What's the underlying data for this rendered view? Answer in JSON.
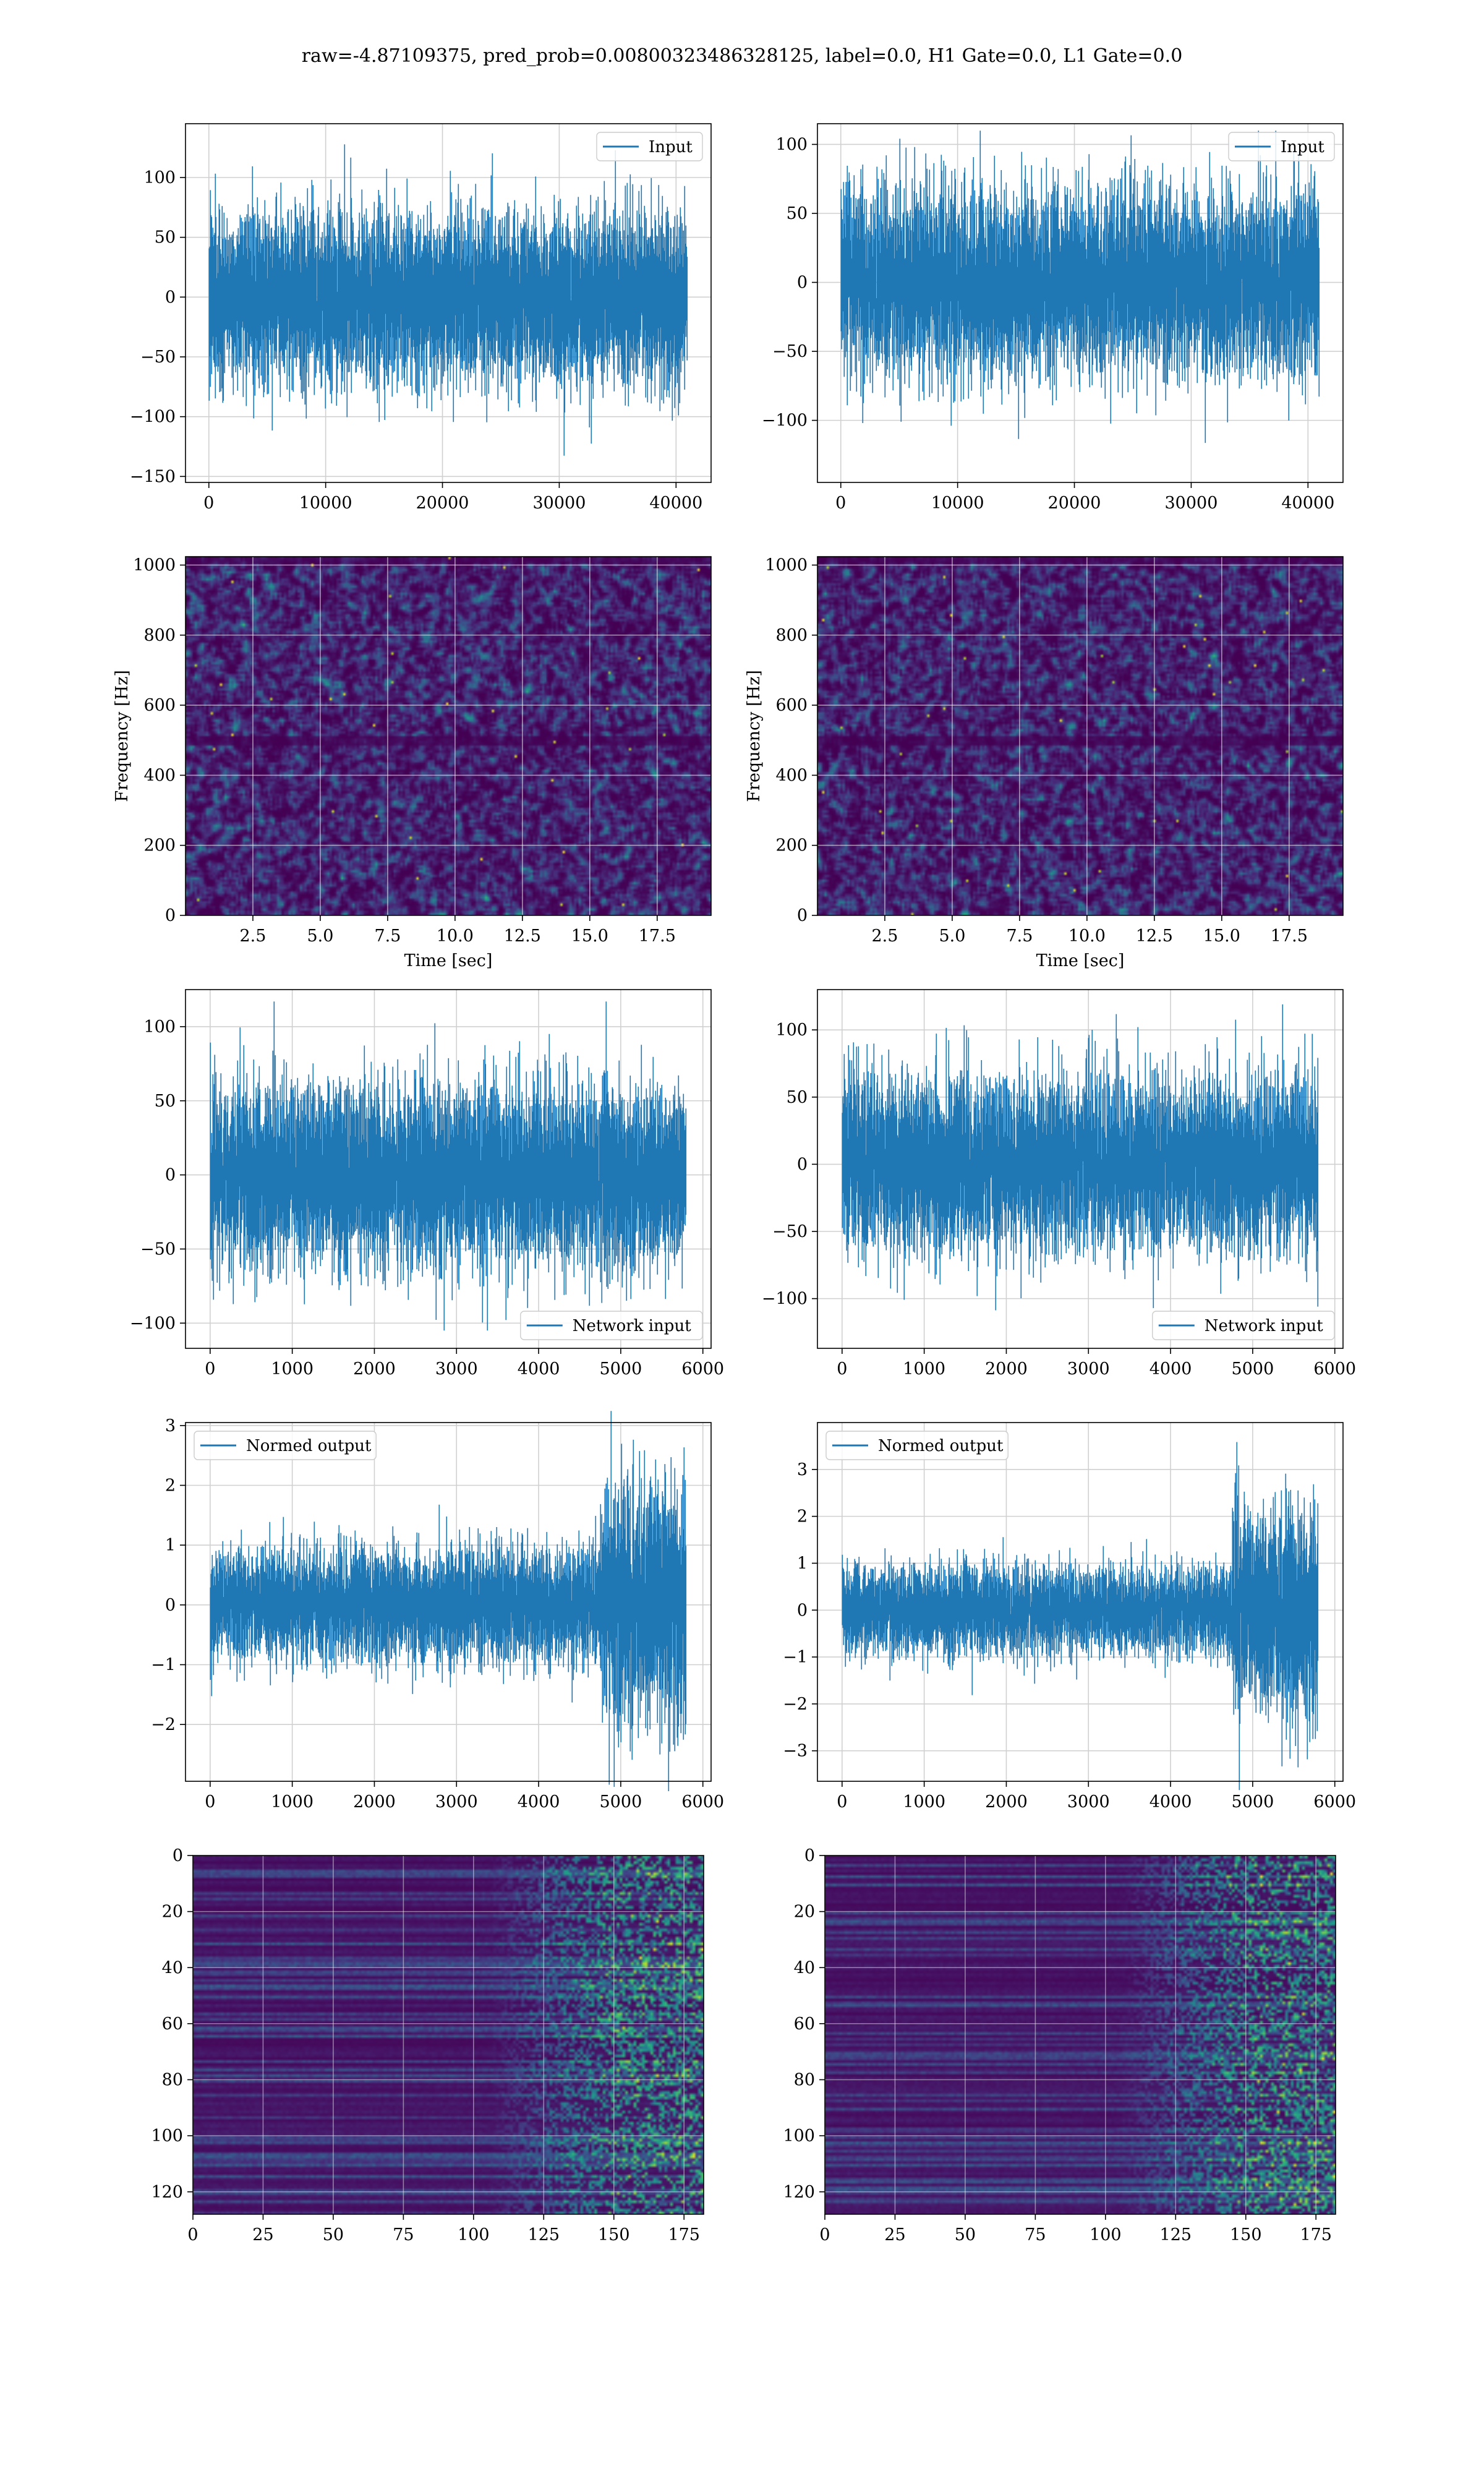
{
  "figure": {
    "suptitle": "raw=-4.87109375, pred_prob=0.00800323486328125, label=0.0, H1 Gate=0.0, L1 Gate=0.0"
  },
  "colors": {
    "line": "#1f77b4",
    "grid": "#d0d0d0",
    "axes": "#000000",
    "viridis": [
      "#440154",
      "#482878",
      "#3e4a89",
      "#31688e",
      "#26828e",
      "#1f9e89",
      "#35b779",
      "#6ece58",
      "#b5de2b",
      "#fde725"
    ]
  },
  "chart_data": [
    {
      "id": "ts-input-left",
      "type": "line",
      "series": [
        {
          "name": "Input",
          "n_samples": 40960,
          "amplitude_range": [
            -137,
            133
          ]
        }
      ],
      "xlim": [
        -2000,
        43000
      ],
      "ylim": [
        -155,
        145
      ],
      "xticks": [
        0,
        10000,
        20000,
        30000,
        40000
      ],
      "xtick_labels": [
        "0",
        "10000",
        "20000",
        "30000",
        "40000"
      ],
      "yticks": [
        -150,
        -100,
        -50,
        0,
        50,
        100
      ],
      "ytick_labels": [
        "−150",
        "−100",
        "−50",
        "0",
        "50",
        "100"
      ],
      "legend": "top-right",
      "grid": true,
      "xlabel": "",
      "ylabel": ""
    },
    {
      "id": "ts-input-right",
      "type": "line",
      "series": [
        {
          "name": "Input",
          "n_samples": 40960,
          "amplitude_range": [
            -128,
            110
          ]
        }
      ],
      "xlim": [
        -2000,
        43000
      ],
      "ylim": [
        -145,
        115
      ],
      "xticks": [
        0,
        10000,
        20000,
        30000,
        40000
      ],
      "xtick_labels": [
        "0",
        "10000",
        "20000",
        "30000",
        "40000"
      ],
      "yticks": [
        -100,
        -50,
        0,
        50,
        100
      ],
      "ytick_labels": [
        "−100",
        "−50",
        "0",
        "50",
        "100"
      ],
      "legend": "top-right",
      "grid": true,
      "xlabel": "",
      "ylabel": ""
    },
    {
      "id": "spec-left",
      "type": "heatmap",
      "xlim": [
        0,
        19.5
      ],
      "ylim": [
        0,
        1024
      ],
      "xticks": [
        2.5,
        5.0,
        7.5,
        10.0,
        12.5,
        15.0,
        17.5
      ],
      "xtick_labels": [
        "2.5",
        "5.0",
        "7.5",
        "10.0",
        "12.5",
        "15.0",
        "17.5"
      ],
      "yticks": [
        0,
        200,
        400,
        600,
        800,
        1000
      ],
      "ytick_labels": [
        "0",
        "200",
        "400",
        "600",
        "800",
        "1000"
      ],
      "xlabel": "Time [sec]",
      "ylabel": "Frequency [Hz]",
      "grid": true,
      "colormap": "viridis"
    },
    {
      "id": "spec-right",
      "type": "heatmap",
      "xlim": [
        0,
        19.5
      ],
      "ylim": [
        0,
        1024
      ],
      "xticks": [
        2.5,
        5.0,
        7.5,
        10.0,
        12.5,
        15.0,
        17.5
      ],
      "xtick_labels": [
        "2.5",
        "5.0",
        "7.5",
        "10.0",
        "12.5",
        "15.0",
        "17.5"
      ],
      "yticks": [
        0,
        200,
        400,
        600,
        800,
        1000
      ],
      "ytick_labels": [
        "0",
        "200",
        "400",
        "600",
        "800",
        "1000"
      ],
      "xlabel": "Time [sec]",
      "ylabel": "Frequency [Hz]",
      "grid": true,
      "colormap": "viridis"
    },
    {
      "id": "ts-net-left",
      "type": "line",
      "series": [
        {
          "name": "Network input",
          "n_samples": 5800,
          "amplitude_range": [
            -105,
            117
          ]
        }
      ],
      "xlim": [
        -300,
        6100
      ],
      "ylim": [
        -117,
        125
      ],
      "xticks": [
        0,
        1000,
        2000,
        3000,
        4000,
        5000,
        6000
      ],
      "xtick_labels": [
        "0",
        "1000",
        "2000",
        "3000",
        "4000",
        "5000",
        "6000"
      ],
      "yticks": [
        -100,
        -50,
        0,
        50,
        100
      ],
      "ytick_labels": [
        "−100",
        "−50",
        "0",
        "50",
        "100"
      ],
      "legend": "bottom-right",
      "grid": true,
      "xlabel": "",
      "ylabel": ""
    },
    {
      "id": "ts-net-right",
      "type": "line",
      "series": [
        {
          "name": "Network input",
          "n_samples": 5800,
          "amplitude_range": [
            -123,
            119
          ]
        }
      ],
      "xlim": [
        -300,
        6100
      ],
      "ylim": [
        -137,
        130
      ],
      "xticks": [
        0,
        1000,
        2000,
        3000,
        4000,
        5000,
        6000
      ],
      "xtick_labels": [
        "0",
        "1000",
        "2000",
        "3000",
        "4000",
        "5000",
        "6000"
      ],
      "yticks": [
        -100,
        -50,
        0,
        50,
        100
      ],
      "ytick_labels": [
        "−100",
        "−50",
        "0",
        "50",
        "100"
      ],
      "legend": "bottom-right",
      "grid": true,
      "xlabel": "",
      "ylabel": ""
    },
    {
      "id": "ts-norm-left",
      "type": "line",
      "series": [
        {
          "name": "Normed output",
          "n_samples": 5800,
          "base_amplitude": 0.45,
          "late_amplitude": 0.95,
          "late_start": 4750
        }
      ],
      "xlim": [
        -300,
        6100
      ],
      "ylim": [
        -2.95,
        3.05
      ],
      "xticks": [
        0,
        1000,
        2000,
        3000,
        4000,
        5000,
        6000
      ],
      "xtick_labels": [
        "0",
        "1000",
        "2000",
        "3000",
        "4000",
        "5000",
        "6000"
      ],
      "yticks": [
        -2,
        -1,
        0,
        1,
        2,
        3
      ],
      "ytick_labels": [
        "−2",
        "−1",
        "0",
        "1",
        "2",
        "3"
      ],
      "legend": "top-left",
      "grid": true,
      "xlabel": "",
      "ylabel": ""
    },
    {
      "id": "ts-norm-right",
      "type": "line",
      "series": [
        {
          "name": "Normed output",
          "n_samples": 5800,
          "base_amplitude": 0.45,
          "late_amplitude": 1.1,
          "late_start": 4750
        }
      ],
      "xlim": [
        -300,
        6100
      ],
      "ylim": [
        -3.65,
        4.0
      ],
      "xticks": [
        0,
        1000,
        2000,
        3000,
        4000,
        5000,
        6000
      ],
      "xtick_labels": [
        "0",
        "1000",
        "2000",
        "3000",
        "4000",
        "5000",
        "6000"
      ],
      "yticks": [
        -3,
        -2,
        -1,
        0,
        1,
        2,
        3
      ],
      "ytick_labels": [
        "−3",
        "−2",
        "−1",
        "0",
        "1",
        "2",
        "3"
      ],
      "legend": "top-left",
      "grid": true,
      "xlabel": "",
      "ylabel": ""
    },
    {
      "id": "feat-left",
      "type": "heatmap",
      "rows": 128,
      "cols": 182,
      "xlim": [
        0,
        182
      ],
      "ylim": [
        128,
        0
      ],
      "xticks": [
        0,
        25,
        50,
        75,
        100,
        125,
        150,
        175
      ],
      "xtick_labels": [
        "0",
        "25",
        "50",
        "75",
        "100",
        "125",
        "150",
        "175"
      ],
      "yticks": [
        0,
        20,
        40,
        60,
        80,
        100,
        120
      ],
      "ytick_labels": [
        "0",
        "20",
        "40",
        "60",
        "80",
        "100",
        "120"
      ],
      "activity_onset_col": 125,
      "grid": true,
      "colormap": "viridis",
      "xlabel": "",
      "ylabel": ""
    },
    {
      "id": "feat-right",
      "type": "heatmap",
      "rows": 128,
      "cols": 182,
      "xlim": [
        0,
        182
      ],
      "ylim": [
        128,
        0
      ],
      "xticks": [
        0,
        25,
        50,
        75,
        100,
        125,
        150,
        175
      ],
      "xtick_labels": [
        "0",
        "25",
        "50",
        "75",
        "100",
        "125",
        "150",
        "175"
      ],
      "yticks": [
        0,
        20,
        40,
        60,
        80,
        100,
        120
      ],
      "ytick_labels": [
        "0",
        "20",
        "40",
        "60",
        "80",
        "100",
        "120"
      ],
      "activity_onset_col": 125,
      "grid": true,
      "colormap": "viridis",
      "xlabel": "",
      "ylabel": ""
    }
  ]
}
